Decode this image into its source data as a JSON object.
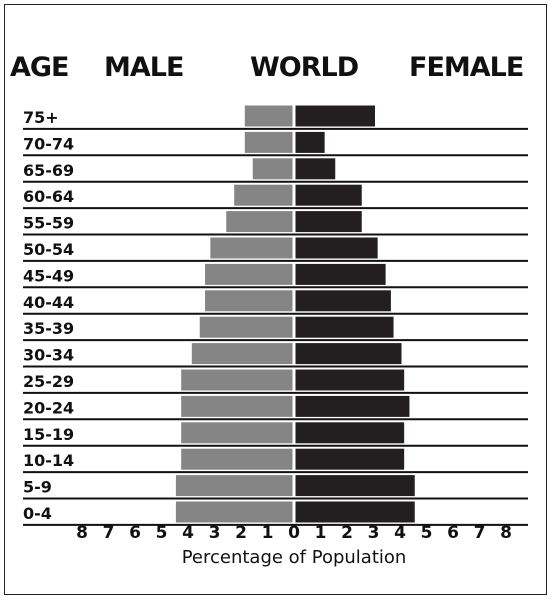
{
  "headers": {
    "age": "AGE",
    "male": "MALE",
    "title": "WORLD",
    "female": "FEMALE"
  },
  "chart_data": {
    "type": "bar",
    "orientation": "horizontal-population-pyramid",
    "title": "WORLD",
    "xlabel": "Percentage of Population",
    "ylabel": "AGE",
    "categories": [
      "75+",
      "70-74",
      "65-69",
      "60-64",
      "55-59",
      "50-54",
      "45-49",
      "40-44",
      "35-39",
      "30-34",
      "25-29",
      "20-24",
      "15-19",
      "10-14",
      "5-9",
      "0-4"
    ],
    "series": [
      {
        "name": "MALE",
        "color": "#858585",
        "values": [
          1.8,
          1.8,
          1.5,
          2.2,
          2.5,
          3.1,
          3.3,
          3.3,
          3.5,
          3.8,
          4.2,
          4.2,
          4.2,
          4.2,
          4.4,
          4.4
        ]
      },
      {
        "name": "FEMALE",
        "color": "#231f20",
        "values": [
          3.0,
          1.1,
          1.5,
          2.5,
          2.5,
          3.1,
          3.4,
          3.6,
          3.7,
          4.0,
          4.1,
          4.3,
          4.1,
          4.1,
          4.5,
          4.5
        ]
      }
    ],
    "xticks": [
      8,
      7,
      6,
      5,
      4,
      3,
      2,
      1,
      0,
      1,
      2,
      3,
      4,
      5,
      6,
      7,
      8
    ],
    "xlim": [
      -8,
      8
    ],
    "grid": "horizontal separator lines between age groups"
  }
}
